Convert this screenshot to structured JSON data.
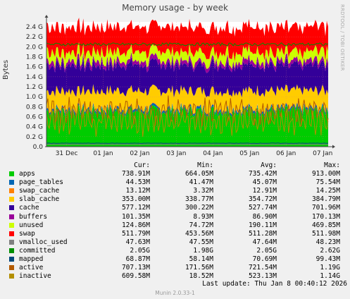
{
  "title": "Memory usage - by week",
  "ylabel": "Bytes",
  "watermark": "RRDTOOL / TOBI OETIKER",
  "version": "Munin 2.0.33-1",
  "last_update": "Last update:  Thu Jan  8 00:40:12 2026",
  "legend_header": {
    "cur": "Cur:",
    "min": "Min:",
    "avg": "Avg:",
    "max": "Max:"
  },
  "legend": [
    {
      "name": "apps",
      "color": "#00cc00",
      "cur": "738.91M",
      "min": "664.05M",
      "avg": "735.42M",
      "max": "913.00M"
    },
    {
      "name": "page_tables",
      "color": "#0066b3",
      "cur": "44.53M",
      "min": "41.47M",
      "avg": "45.07M",
      "max": "75.54M"
    },
    {
      "name": "swap_cache",
      "color": "#ff8000",
      "cur": "13.12M",
      "min": "3.32M",
      "avg": "12.91M",
      "max": "14.25M"
    },
    {
      "name": "slab_cache",
      "color": "#ffcc00",
      "cur": "353.00M",
      "min": "338.77M",
      "avg": "354.72M",
      "max": "384.79M"
    },
    {
      "name": "cache",
      "color": "#330099",
      "cur": "577.12M",
      "min": "300.22M",
      "avg": "527.74M",
      "max": "701.96M"
    },
    {
      "name": "buffers",
      "color": "#990099",
      "cur": "101.35M",
      "min": "8.93M",
      "avg": "86.90M",
      "max": "170.13M"
    },
    {
      "name": "unused",
      "color": "#ccff00",
      "cur": "124.86M",
      "min": "74.72M",
      "avg": "190.11M",
      "max": "469.85M"
    },
    {
      "name": "swap",
      "color": "#ff0000",
      "cur": "511.79M",
      "min": "453.56M",
      "avg": "511.28M",
      "max": "511.98M"
    },
    {
      "name": "vmalloc_used",
      "color": "#808080",
      "cur": "47.63M",
      "min": "47.55M",
      "avg": "47.64M",
      "max": "48.23M"
    },
    {
      "name": "committed",
      "color": "#008f00",
      "cur": "2.05G",
      "min": "1.98G",
      "avg": "2.05G",
      "max": "2.62G"
    },
    {
      "name": "mapped",
      "color": "#00487d",
      "cur": "68.87M",
      "min": "58.14M",
      "avg": "70.69M",
      "max": "99.43M"
    },
    {
      "name": "active",
      "color": "#b35a00",
      "cur": "707.13M",
      "min": "171.56M",
      "avg": "721.54M",
      "max": "1.19G"
    },
    {
      "name": "inactive",
      "color": "#b38f00",
      "cur": "609.58M",
      "min": "18.52M",
      "avg": "523.13M",
      "max": "1.14G"
    }
  ],
  "chart_data": {
    "type": "area",
    "title": "Memory usage - by week",
    "ylabel": "Bytes",
    "xlabel": "",
    "x_ticks": [
      "31 Dec",
      "01 Jan",
      "02 Jan",
      "03 Jan",
      "04 Jan",
      "05 Jan",
      "06 Jan",
      "07 Jan"
    ],
    "y_ticks": [
      "0.0",
      "0.2 G",
      "0.4 G",
      "0.6 G",
      "0.8 G",
      "1.0 G",
      "1.2 G",
      "1.4 G",
      "1.6 G",
      "1.8 G",
      "2.0 G",
      "2.2 G",
      "2.4 G"
    ],
    "ylim": [
      0,
      2.5
    ],
    "y_unit": "G bytes",
    "grid": true,
    "stacked_series_avg_gb": [
      {
        "name": "apps",
        "value": 0.718
      },
      {
        "name": "page_tables",
        "value": 0.044
      },
      {
        "name": "swap_cache",
        "value": 0.013
      },
      {
        "name": "slab_cache",
        "value": 0.346
      },
      {
        "name": "cache",
        "value": 0.515
      },
      {
        "name": "buffers",
        "value": 0.085
      },
      {
        "name": "unused",
        "value": 0.186
      },
      {
        "name": "swap",
        "value": 0.499
      }
    ],
    "line_series_avg_gb": [
      {
        "name": "vmalloc_used",
        "value": 0.047
      },
      {
        "name": "committed",
        "value": 2.05
      },
      {
        "name": "mapped",
        "value": 0.069
      },
      {
        "name": "active",
        "value": 0.705
      },
      {
        "name": "inactive",
        "value": 0.511
      }
    ]
  }
}
